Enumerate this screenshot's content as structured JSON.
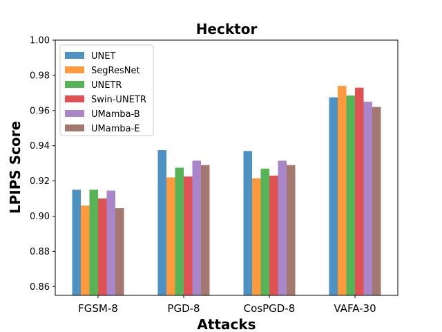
{
  "chart_data": {
    "type": "bar",
    "title": "Hecktor",
    "xlabel": "Attacks",
    "ylabel": "LPIPS Score",
    "ylim": [
      0.855,
      1.0
    ],
    "yticks": [
      0.86,
      0.88,
      0.9,
      0.92,
      0.94,
      0.96,
      0.98,
      1.0
    ],
    "ytick_labels": [
      "0.86",
      "0.88",
      "0.90",
      "0.92",
      "0.94",
      "0.96",
      "0.98",
      "1.00"
    ],
    "categories": [
      "FGSM-8",
      "PGD-8",
      "CosPGD-8",
      "VAFA-30"
    ],
    "legend_position": "top-left",
    "series": [
      {
        "name": "UNET",
        "color": "#1f77b4",
        "values": [
          0.915,
          0.9375,
          0.937,
          0.9675
        ]
      },
      {
        "name": "SegResNet",
        "color": "#ff7f0e",
        "values": [
          0.906,
          0.922,
          0.9215,
          0.974
        ]
      },
      {
        "name": "UNETR",
        "color": "#2ca02c",
        "values": [
          0.915,
          0.9275,
          0.927,
          0.9685
        ]
      },
      {
        "name": "Swin-UNETR",
        "color": "#d62728",
        "values": [
          0.91,
          0.9225,
          0.923,
          0.973
        ]
      },
      {
        "name": "UMamba-B",
        "color": "#9467bd",
        "values": [
          0.9145,
          0.9315,
          0.9315,
          0.965
        ]
      },
      {
        "name": "UMamba-E",
        "color": "#8c564b",
        "values": [
          0.9045,
          0.929,
          0.929,
          0.962
        ]
      }
    ]
  }
}
